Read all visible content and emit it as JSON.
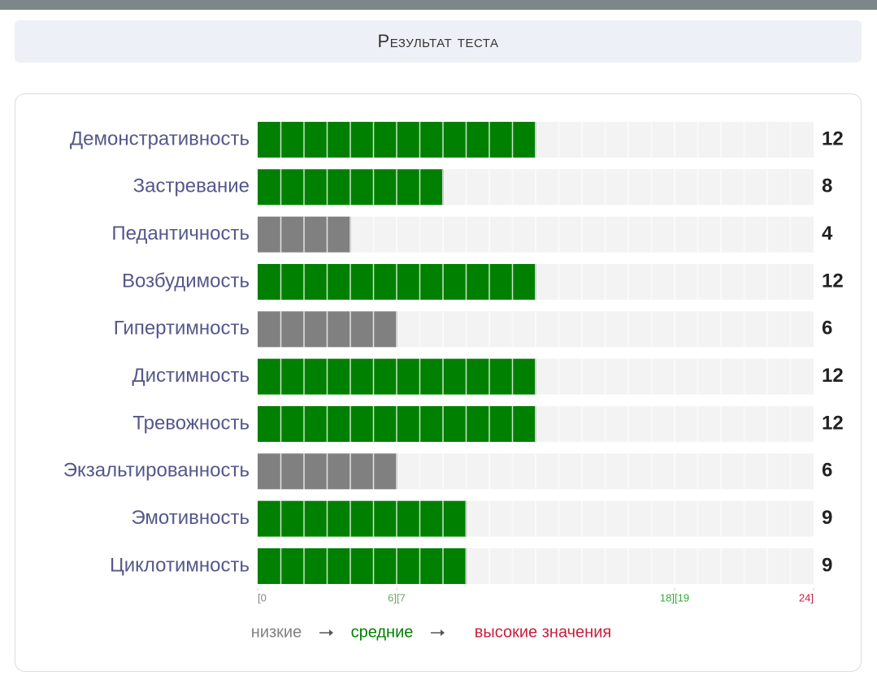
{
  "chart_data": {
    "type": "bar",
    "orientation": "horizontal",
    "title": "Результат теста",
    "categories": [
      "Демонстративность",
      "Застревание",
      "Педантичность",
      "Возбудимость",
      "Гипертимность",
      "Дистимность",
      "Тревожность",
      "Экзальтированность",
      "Эмотивность",
      "Циклотимность"
    ],
    "values": [
      12,
      8,
      4,
      12,
      6,
      12,
      12,
      6,
      9,
      9
    ],
    "colors": [
      "#008000",
      "#008000",
      "#808080",
      "#008000",
      "#808080",
      "#008000",
      "#008000",
      "#808080",
      "#008000",
      "#008000"
    ],
    "xlim": [
      0,
      24
    ],
    "xticks": [
      {
        "value": 0,
        "label": "[0"
      },
      {
        "value": 6,
        "label": "6][7"
      },
      {
        "value": 18,
        "label": "18][19"
      },
      {
        "value": 24,
        "label": "24]"
      }
    ],
    "legend": [
      {
        "label": "низкие",
        "color": "#808080"
      },
      {
        "label": "средние",
        "color": "#008000"
      },
      {
        "label": "высокие значения",
        "color": "#c8203c"
      }
    ]
  }
}
